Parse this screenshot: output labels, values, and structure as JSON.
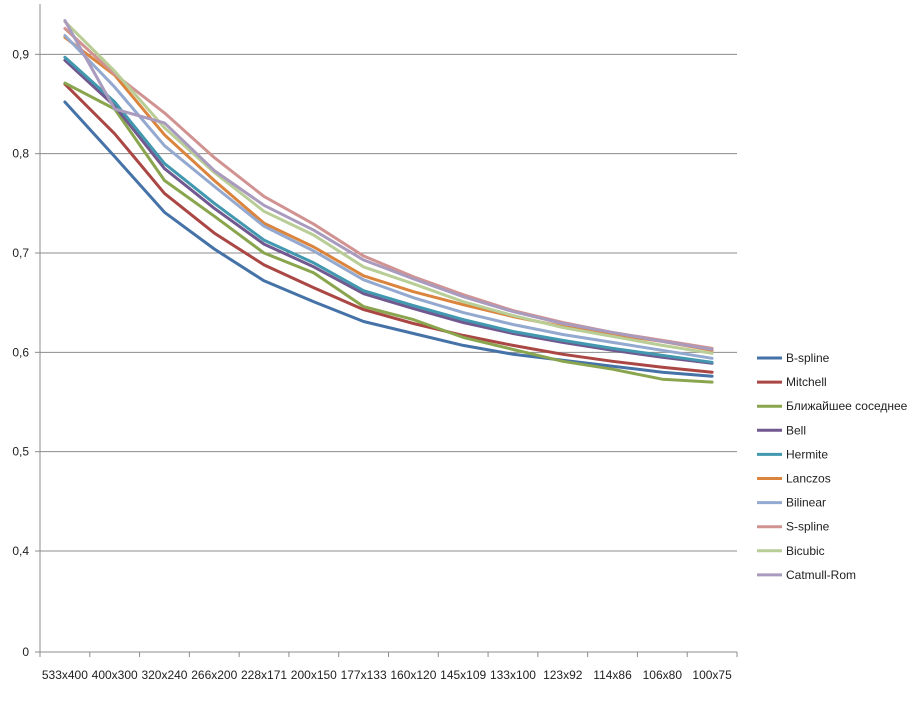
{
  "chart_data": {
    "type": "line",
    "title": "",
    "xlabel": "",
    "ylabel": "",
    "categories": [
      "533x400",
      "400x300",
      "320x240",
      "266x200",
      "228x171",
      "200x150",
      "177x133",
      "160x120",
      "145x109",
      "133x100",
      "123x92",
      "114x86",
      "106x80",
      "100x75"
    ],
    "ylim": [
      0,
      0.9
    ],
    "yticks": [
      0,
      0.4,
      0.5,
      0.6,
      0.7,
      0.8,
      0.9
    ],
    "ytick_labels": [
      "0",
      "0,4",
      "0,5",
      "0,6",
      "0,7",
      "0,8",
      "0,9"
    ],
    "y_axis_break": true,
    "grid": true,
    "legend_position": "right",
    "series": [
      {
        "name": "B-spline",
        "color": "#4572A7",
        "values": [
          0.852,
          0.797,
          0.741,
          0.704,
          0.672,
          0.651,
          0.631,
          0.619,
          0.607,
          0.598,
          0.592,
          0.586,
          0.58,
          0.576
        ]
      },
      {
        "name": "Mitchell",
        "color": "#AA4643",
        "values": [
          0.87,
          0.82,
          0.76,
          0.72,
          0.688,
          0.665,
          0.643,
          0.629,
          0.617,
          0.607,
          0.598,
          0.591,
          0.585,
          0.58
        ]
      },
      {
        "name": "Ближайшее соседнее",
        "color": "#89A54E",
        "values": [
          0.871,
          0.845,
          0.773,
          0.737,
          0.7,
          0.68,
          0.646,
          0.633,
          0.615,
          0.603,
          0.591,
          0.583,
          0.573,
          0.57
        ]
      },
      {
        "name": "Bell",
        "color": "#71588F",
        "values": [
          0.894,
          0.848,
          0.785,
          0.745,
          0.709,
          0.686,
          0.659,
          0.644,
          0.63,
          0.619,
          0.61,
          0.602,
          0.595,
          0.589
        ]
      },
      {
        "name": "Hermite",
        "color": "#4198AF",
        "values": [
          0.897,
          0.852,
          0.79,
          0.75,
          0.713,
          0.69,
          0.662,
          0.647,
          0.633,
          0.621,
          0.612,
          0.604,
          0.597,
          0.59
        ]
      },
      {
        "name": "Lanczos",
        "color": "#DB843D",
        "values": [
          0.917,
          0.879,
          0.819,
          0.773,
          0.73,
          0.706,
          0.677,
          0.661,
          0.648,
          0.636,
          0.626,
          0.618,
          0.611,
          0.602
        ]
      },
      {
        "name": "Bilinear",
        "color": "#93A9CF",
        "values": [
          0.919,
          0.867,
          0.808,
          0.767,
          0.727,
          0.702,
          0.673,
          0.655,
          0.64,
          0.628,
          0.618,
          0.61,
          0.602,
          0.594
        ]
      },
      {
        "name": "S-spline",
        "color": "#D19392",
        "values": [
          0.926,
          0.88,
          0.841,
          0.796,
          0.757,
          0.729,
          0.697,
          0.676,
          0.658,
          0.642,
          0.63,
          0.62,
          0.612,
          0.604
        ]
      },
      {
        "name": "Bicubic",
        "color": "#B9CD96",
        "values": [
          0.933,
          0.883,
          0.826,
          0.781,
          0.742,
          0.718,
          0.686,
          0.669,
          0.651,
          0.637,
          0.625,
          0.616,
          0.607,
          0.599
        ]
      },
      {
        "name": "Catmull-Rom",
        "color": "#A99BBD",
        "values": [
          0.934,
          0.845,
          0.831,
          0.783,
          0.748,
          0.723,
          0.693,
          0.674,
          0.656,
          0.641,
          0.629,
          0.62,
          0.611,
          0.603
        ]
      }
    ]
  }
}
